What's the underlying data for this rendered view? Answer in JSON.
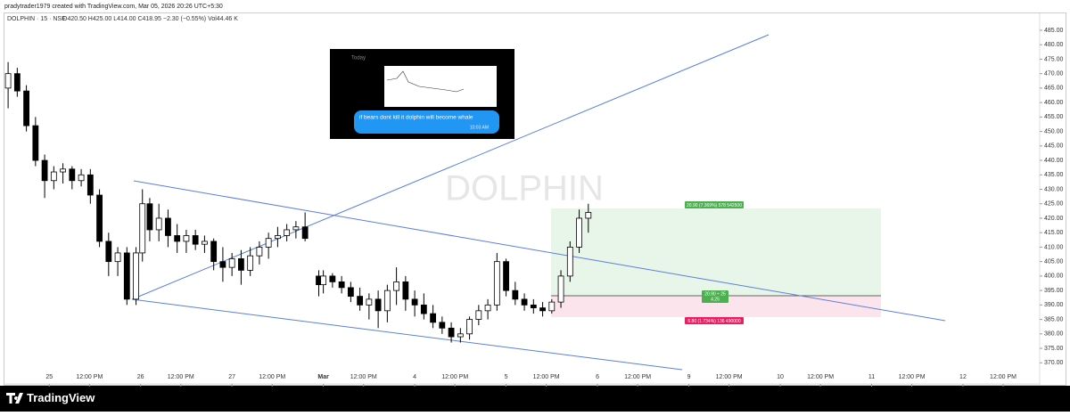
{
  "header": {
    "credit": "pradytrader1979 created with TradingView.com, Mar 05, 2026 20:26 UTC+5:30"
  },
  "legend": {
    "symbol": "DOLPHIN · 15 · NSE",
    "ohlc": "O420.50 H425.00 L414.00 C418.95 −2.30 (−0.55%) Vol44.46 K"
  },
  "watermark": "DOLPHIN",
  "inset": {
    "day": "Today",
    "message": "if bears dont kill it dolphin will become whale",
    "time": "10:03 AM"
  },
  "position": {
    "target": "20.90 (7.369%) 578 542500",
    "ratio": "20.90 ÷ 25",
    "ratio_value": "4.25",
    "stop": "6.80 (1.734%) 136 490000"
  },
  "footer": {
    "brand": "TradingView"
  },
  "chart_data": {
    "type": "candlestick",
    "x": [
      -0.45,
      -0.35,
      -0.25,
      -0.15,
      -0.05,
      0.05,
      0.15,
      0.25,
      0.35,
      0.45,
      0.55,
      0.65,
      0.75,
      0.85,
      0.95,
      1.02,
      1.1,
      1.2,
      1.3,
      1.4,
      1.5,
      1.6,
      1.7,
      1.8,
      1.9,
      2.0,
      2.1,
      2.2,
      2.3,
      2.4,
      2.5,
      2.6,
      2.7,
      2.8,
      2.95,
      3.0,
      3.1,
      3.2,
      3.3,
      3.4,
      3.5,
      3.6,
      3.7,
      3.8,
      3.9,
      4.0,
      4.1,
      4.2,
      4.3,
      4.4,
      4.5,
      4.6,
      4.7,
      4.8,
      4.9,
      5.0,
      5.1,
      5.2,
      5.3,
      5.4,
      5.5,
      5.6,
      5.7,
      5.8,
      5.9
    ],
    "open": [
      465,
      470,
      464,
      452,
      440,
      433,
      436,
      437,
      433,
      435,
      428,
      412,
      405,
      408,
      392,
      408,
      425,
      416,
      420,
      414,
      412,
      414,
      411,
      412,
      405,
      403,
      406,
      402,
      407,
      410,
      413,
      414,
      416,
      417,
      400,
      397,
      400,
      398,
      396,
      393,
      390,
      392,
      388,
      395,
      398,
      392,
      390,
      387,
      384,
      382,
      379,
      380,
      385,
      388,
      390,
      405,
      395,
      392,
      390,
      389,
      388,
      391,
      400,
      410,
      420
    ],
    "high": [
      474,
      472,
      466,
      455,
      442,
      438,
      439,
      438,
      437,
      437,
      430,
      415,
      410,
      410,
      410,
      430,
      427,
      425,
      423,
      418,
      416,
      416,
      414,
      413,
      410,
      408,
      409,
      410,
      412,
      415,
      417,
      418,
      419,
      422,
      402,
      402,
      401,
      400,
      398,
      396,
      394,
      395,
      397,
      403,
      400,
      395,
      394,
      390,
      386,
      384,
      382,
      386,
      390,
      392,
      408,
      406,
      398,
      394,
      392,
      391,
      392,
      402,
      412,
      423,
      425
    ],
    "low": [
      458,
      462,
      450,
      438,
      427,
      430,
      432,
      430,
      431,
      425,
      410,
      400,
      400,
      390,
      390,
      405,
      412,
      412,
      410,
      408,
      408,
      409,
      408,
      402,
      398,
      400,
      397,
      400,
      404,
      406,
      410,
      412,
      413,
      412,
      393,
      394,
      396,
      394,
      391,
      388,
      385,
      382,
      384,
      390,
      388,
      386,
      385,
      382,
      380,
      377,
      377,
      378,
      383,
      385,
      388,
      393,
      390,
      388,
      387,
      386,
      387,
      389,
      398,
      408,
      415
    ],
    "close": [
      470,
      464,
      452,
      440,
      433,
      436,
      437,
      433,
      435,
      428,
      412,
      405,
      408,
      392,
      408,
      425,
      416,
      420,
      414,
      412,
      414,
      411,
      412,
      405,
      403,
      406,
      402,
      407,
      410,
      413,
      414,
      416,
      417,
      413,
      397,
      400,
      398,
      396,
      393,
      390,
      392,
      388,
      395,
      398,
      392,
      390,
      387,
      384,
      382,
      379,
      380,
      385,
      388,
      390,
      405,
      395,
      392,
      390,
      389,
      388,
      391,
      400,
      410,
      420,
      422
    ],
    "xlim": [
      -0.49,
      10.83
    ],
    "xticks": [
      {
        "value": 0,
        "label": "25"
      },
      {
        "value": 0.44,
        "label": "12:00 PM"
      },
      {
        "value": 1,
        "label": "26"
      },
      {
        "value": 1.44,
        "label": "12:00 PM"
      },
      {
        "value": 2,
        "label": "27"
      },
      {
        "value": 2.44,
        "label": "12:00 PM"
      },
      {
        "value": 3,
        "label": "Mar"
      },
      {
        "value": 3.44,
        "label": "12:00 PM"
      },
      4,
      {
        "value": 4.44,
        "label": "12:00 PM"
      },
      5,
      {
        "value": 5.44,
        "label": "12:00 PM"
      },
      6,
      {
        "value": 6.44,
        "label": "12:00 PM"
      },
      {
        "value": 7,
        "label": "9"
      },
      {
        "value": 7.44,
        "label": "12:00 PM"
      },
      {
        "value": 8,
        "label": "10"
      },
      {
        "value": 8.44,
        "label": "12:00 PM"
      },
      {
        "value": 9,
        "label": "11"
      },
      {
        "value": 9.44,
        "label": "12:00 PM"
      },
      {
        "value": 10,
        "label": "12"
      },
      {
        "value": 10.44,
        "label": "12:00 PM"
      }
    ],
    "ylim": [
      363,
      493
    ],
    "yticks": [
      {
        "value": 370,
        "label": "370.00"
      },
      {
        "value": 375,
        "label": "375.00"
      },
      {
        "value": 380,
        "label": "380.00"
      },
      {
        "value": 385,
        "label": "385.00"
      },
      {
        "value": 390,
        "label": "390.00"
      },
      {
        "value": 395,
        "label": "395.00"
      },
      {
        "value": 400,
        "label": "400.00"
      },
      {
        "value": 405,
        "label": "405.00"
      },
      {
        "value": 410,
        "label": "410.00"
      },
      {
        "value": 415,
        "label": "415.00"
      },
      {
        "value": 420,
        "label": "420.00"
      },
      {
        "value": 425,
        "label": "425.00"
      },
      {
        "value": 430,
        "label": "430.00"
      },
      {
        "value": 435,
        "label": "435.00"
      },
      {
        "value": 440,
        "label": "440.00"
      },
      {
        "value": 445,
        "label": "445.00"
      },
      {
        "value": 450,
        "label": "450.00"
      },
      {
        "value": 455,
        "label": "455.00"
      },
      {
        "value": 460,
        "label": "460.00"
      },
      {
        "value": 465,
        "label": "465.00"
      },
      {
        "value": 470,
        "label": "470.00"
      },
      {
        "value": 475,
        "label": "475.00"
      },
      {
        "value": 480,
        "label": "480.00"
      },
      {
        "value": 485,
        "label": "485.00"
      }
    ],
    "up_color": "#ffffff",
    "down_color": "#000000"
  }
}
